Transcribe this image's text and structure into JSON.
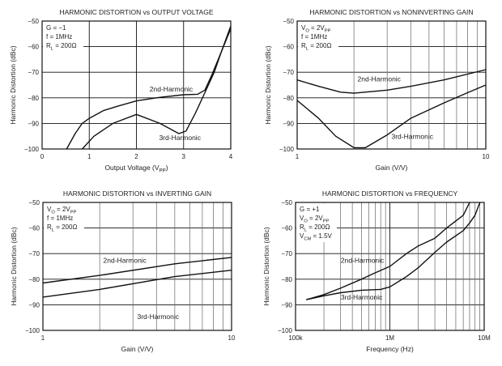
{
  "chart_data": [
    {
      "type": "line",
      "title": "HARMONIC DISTORTION vs OUTPUT VOLTAGE",
      "xlabel": [
        {
          "t": "Output Voltage (V"
        },
        {
          "s": "PP"
        },
        {
          "t": ")"
        }
      ],
      "ylabel": "Harmonic Distortion (dBc)",
      "xscale": "linear",
      "xlim": [
        0,
        4
      ],
      "ylim": [
        -100,
        -50
      ],
      "xticks": [
        0,
        1,
        2,
        3,
        4
      ],
      "xtick_labels": [
        "0",
        "1",
        "2",
        "3",
        "4"
      ],
      "yticks": [
        -50,
        -60,
        -70,
        -80,
        -90,
        -100
      ],
      "ytick_labels": [
        "−50",
        "−60",
        "−70",
        "−80",
        "−90",
        "−100"
      ],
      "grid": true,
      "conditions": [
        [
          {
            "t": "G = −1"
          }
        ],
        [
          {
            "t": "f = 1MHz"
          }
        ],
        [
          {
            "t": "R"
          },
          {
            "s": "L"
          },
          {
            "t": " = 200Ω"
          }
        ]
      ],
      "series": [
        {
          "name": "2nd-Harmonic",
          "x": [
            0.52,
            0.7,
            0.85,
            1.0,
            1.3,
            1.6,
            2.0,
            2.5,
            3.0,
            3.3,
            3.45,
            3.6,
            3.8,
            4.0
          ],
          "y": [
            -100,
            -94,
            -90,
            -88,
            -85,
            -83.3,
            -81.2,
            -79.8,
            -78.8,
            -78.6,
            -77,
            -71,
            -62,
            -52
          ]
        },
        {
          "name": "3rd-Harmonic",
          "x": [
            0.85,
            1.1,
            1.5,
            2.0,
            2.5,
            2.9,
            3.05,
            3.25,
            3.45,
            3.65,
            3.8,
            4.0
          ],
          "y": [
            -100,
            -95,
            -90,
            -86.5,
            -90,
            -94,
            -93,
            -86,
            -78,
            -70,
            -62,
            -53
          ]
        }
      ]
    },
    {
      "type": "line",
      "title": "HARMONIC DISTORTION vs NONINVERTING GAIN",
      "xlabel": [
        {
          "t": "Gain (V/V)"
        }
      ],
      "ylabel": "Harmonic Distortion (dBc)",
      "xscale": "log",
      "xlim": [
        1,
        10
      ],
      "ylim": [
        -100,
        -50
      ],
      "xticks": [
        1,
        10
      ],
      "xtick_labels": [
        "1",
        "10"
      ],
      "yticks": [
        -50,
        -60,
        -70,
        -80,
        -90,
        -100
      ],
      "ytick_labels": [
        "−50",
        "−60",
        "−70",
        "−80",
        "−90",
        "−100"
      ],
      "grid": true,
      "conditions": [
        [
          {
            "t": "V"
          },
          {
            "s": "O"
          },
          {
            "t": " = 2V"
          },
          {
            "s": "PP"
          }
        ],
        [
          {
            "t": "f = 1MHz"
          }
        ],
        [
          {
            "t": "R"
          },
          {
            "s": "L"
          },
          {
            "t": " = 200Ω"
          }
        ]
      ],
      "series": [
        {
          "name": "2nd-Harmonic",
          "x": [
            1,
            1.3,
            1.7,
            2,
            3,
            4,
            6,
            10
          ],
          "y": [
            -73,
            -75.5,
            -77.8,
            -78.2,
            -77,
            -75.5,
            -73,
            -69
          ]
        },
        {
          "name": "3rd-Harmonic",
          "x": [
            1,
            1.3,
            1.6,
            2,
            2.3,
            3,
            4,
            6,
            8,
            10
          ],
          "y": [
            -81,
            -88,
            -95,
            -99.5,
            -99.5,
            -94.5,
            -88,
            -82,
            -78,
            -75
          ]
        }
      ]
    },
    {
      "type": "line",
      "title": "HARMONIC DISTORTION vs INVERTING GAIN",
      "xlabel": [
        {
          "t": "Gain (V/V)"
        }
      ],
      "ylabel": "Harmonic Distortion (dBc)",
      "xscale": "log",
      "xlim": [
        1,
        10
      ],
      "ylim": [
        -100,
        -50
      ],
      "xticks": [
        1,
        10
      ],
      "xtick_labels": [
        "1",
        "10"
      ],
      "yticks": [
        -50,
        -60,
        -70,
        -80,
        -90,
        -100
      ],
      "ytick_labels": [
        "−50",
        "−60",
        "−70",
        "−80",
        "−90",
        "−100"
      ],
      "grid": true,
      "conditions": [
        [
          {
            "t": "V"
          },
          {
            "s": "O"
          },
          {
            "t": " = 2V"
          },
          {
            "s": "PP"
          }
        ],
        [
          {
            "t": "f = 1MHz"
          }
        ],
        [
          {
            "t": "R"
          },
          {
            "s": "L"
          },
          {
            "t": " = 200Ω"
          }
        ]
      ],
      "series": [
        {
          "name": "2nd-Harmonic",
          "x": [
            1,
            2,
            5,
            10
          ],
          "y": [
            -81.5,
            -78.5,
            -74,
            -71.5
          ]
        },
        {
          "name": "3rd-Harmonic",
          "x": [
            1,
            2,
            5,
            10
          ],
          "y": [
            -87,
            -84,
            -79,
            -76.5
          ]
        }
      ]
    },
    {
      "type": "line",
      "title": "HARMONIC DISTORTION vs FREQUENCY",
      "xlabel": [
        {
          "t": "Frequency (Hz)"
        }
      ],
      "ylabel": "Harmonic Distortion (dBc)",
      "xscale": "log",
      "xlim": [
        100000,
        10000000
      ],
      "ylim": [
        -100,
        -50
      ],
      "xticks": [
        100000,
        1000000,
        10000000
      ],
      "xtick_labels": [
        "100k",
        "1M",
        "10M"
      ],
      "yticks": [
        -50,
        -60,
        -70,
        -80,
        -90,
        -100
      ],
      "ytick_labels": [
        "−50",
        "−60",
        "−70",
        "−80",
        "−90",
        "−100"
      ],
      "grid": true,
      "conditions": [
        [
          {
            "t": "G = +1"
          }
        ],
        [
          {
            "t": "V"
          },
          {
            "s": "O"
          },
          {
            "t": " = 2V"
          },
          {
            "s": "PP"
          }
        ],
        [
          {
            "t": "R"
          },
          {
            "s": "L"
          },
          {
            "t": " = 200Ω"
          }
        ],
        [
          {
            "t": "V"
          },
          {
            "s": "CM"
          },
          {
            "t": " = 1.5V"
          }
        ]
      ],
      "series": [
        {
          "name": "2nd-Harmonic",
          "x": [
            130000,
            200000,
            300000,
            500000,
            700000,
            1000000,
            1500000,
            2000000,
            3000000,
            4000000,
            6000000,
            7000000
          ],
          "y": [
            -88,
            -86,
            -83.5,
            -80,
            -77.5,
            -75,
            -70,
            -67,
            -64,
            -60,
            -55,
            -50
          ]
        },
        {
          "name": "3rd-Harmonic",
          "x": [
            130000,
            200000,
            300000,
            500000,
            800000,
            1000000,
            1500000,
            2000000,
            3000000,
            4000000,
            6000000,
            7000000,
            8000000,
            9000000
          ],
          "y": [
            -88,
            -86.5,
            -85.3,
            -84.3,
            -84,
            -83,
            -79,
            -75.5,
            -69.5,
            -65.5,
            -61,
            -58,
            -55,
            -50
          ]
        }
      ]
    }
  ]
}
